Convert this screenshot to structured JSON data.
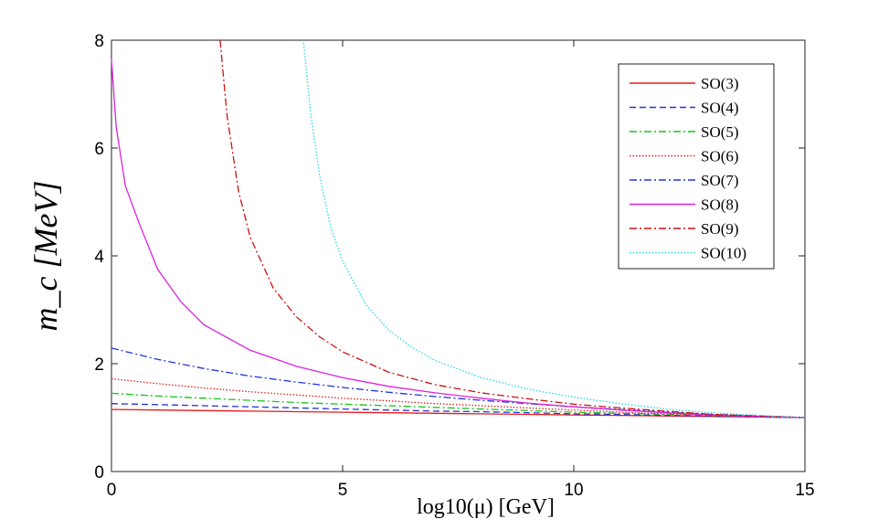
{
  "chart_data": {
    "type": "line",
    "title": "",
    "xlabel": "log10(μ) [GeV]",
    "ylabel": "m_c [MeV]",
    "xlim": [
      0,
      15
    ],
    "ylim": [
      0,
      8
    ],
    "xticks": [
      0,
      5,
      10,
      15
    ],
    "yticks": [
      0,
      2,
      4,
      6,
      8
    ],
    "legend_position": "top-right",
    "series": [
      {
        "name": "SO(3)",
        "color": "#e8191b",
        "dash": "solid",
        "x": [
          0,
          1,
          2,
          3,
          4,
          5,
          6,
          7,
          8,
          9,
          10,
          11,
          12,
          13,
          14,
          15
        ],
        "y": [
          1.15,
          1.14,
          1.13,
          1.12,
          1.11,
          1.1,
          1.09,
          1.08,
          1.07,
          1.06,
          1.05,
          1.04,
          1.03,
          1.02,
          1.01,
          1.0
        ]
      },
      {
        "name": "SO(4)",
        "color": "#2233dd",
        "dash": "dashed",
        "x": [
          0,
          1,
          2,
          3,
          4,
          5,
          6,
          7,
          8,
          9,
          10,
          11,
          12,
          13,
          14,
          15
        ],
        "y": [
          1.26,
          1.24,
          1.22,
          1.2,
          1.18,
          1.16,
          1.14,
          1.12,
          1.11,
          1.09,
          1.07,
          1.06,
          1.04,
          1.03,
          1.01,
          1.0
        ]
      },
      {
        "name": "SO(5)",
        "color": "#19c219",
        "dash": "dashdot",
        "x": [
          0,
          1,
          2,
          3,
          4,
          5,
          6,
          7,
          8,
          9,
          10,
          11,
          12,
          13,
          14,
          15
        ],
        "y": [
          1.45,
          1.4,
          1.36,
          1.32,
          1.28,
          1.25,
          1.22,
          1.19,
          1.16,
          1.13,
          1.1,
          1.08,
          1.06,
          1.04,
          1.02,
          1.0
        ]
      },
      {
        "name": "SO(6)",
        "color": "#e8191b",
        "dash": "dotted",
        "x": [
          0,
          1,
          2,
          3,
          4,
          5,
          6,
          7,
          8,
          9,
          10,
          11,
          12,
          13,
          14,
          15
        ],
        "y": [
          1.72,
          1.63,
          1.55,
          1.48,
          1.42,
          1.36,
          1.31,
          1.26,
          1.22,
          1.18,
          1.14,
          1.1,
          1.07,
          1.04,
          1.02,
          1.0
        ]
      },
      {
        "name": "SO(7)",
        "color": "#2233dd",
        "dash": "dashdot",
        "x": [
          0,
          1,
          2,
          3,
          4,
          5,
          6,
          7,
          8,
          9,
          10,
          11,
          12,
          13,
          14,
          15
        ],
        "y": [
          2.29,
          2.08,
          1.91,
          1.77,
          1.66,
          1.56,
          1.47,
          1.39,
          1.32,
          1.26,
          1.2,
          1.15,
          1.1,
          1.06,
          1.03,
          1.0
        ]
      },
      {
        "name": "SO(8)",
        "color": "#dd22dd",
        "dash": "solid",
        "x": [
          0,
          0.1,
          0.3,
          0.6,
          1,
          1.5,
          2,
          3,
          4,
          5,
          6,
          7,
          8,
          9,
          10,
          11,
          12,
          13,
          14,
          15
        ],
        "y": [
          7.65,
          6.4,
          5.3,
          4.6,
          3.75,
          3.15,
          2.72,
          2.25,
          1.95,
          1.74,
          1.58,
          1.46,
          1.36,
          1.27,
          1.2,
          1.14,
          1.09,
          1.05,
          1.02,
          1.0
        ]
      },
      {
        "name": "SO(9)",
        "color": "#cc1111",
        "dash": "dashdot",
        "x": [
          2.35,
          2.5,
          2.75,
          3,
          3.5,
          4,
          4.5,
          5,
          6,
          7,
          8,
          9,
          10,
          11,
          12,
          13,
          14,
          15
        ],
        "y": [
          8.0,
          6.6,
          5.2,
          4.35,
          3.4,
          2.87,
          2.5,
          2.22,
          1.84,
          1.61,
          1.46,
          1.35,
          1.25,
          1.18,
          1.12,
          1.06,
          1.03,
          1.0
        ]
      },
      {
        "name": "SO(10)",
        "color": "#22d8e8",
        "dash": "dotted",
        "x": [
          4.15,
          4.3,
          4.5,
          4.75,
          5,
          5.5,
          6,
          6.5,
          7,
          8,
          9,
          10,
          11,
          12,
          13,
          14,
          15
        ],
        "y": [
          8.0,
          6.7,
          5.5,
          4.5,
          3.9,
          3.1,
          2.62,
          2.3,
          2.06,
          1.74,
          1.53,
          1.38,
          1.26,
          1.16,
          1.09,
          1.04,
          1.0
        ]
      }
    ]
  }
}
